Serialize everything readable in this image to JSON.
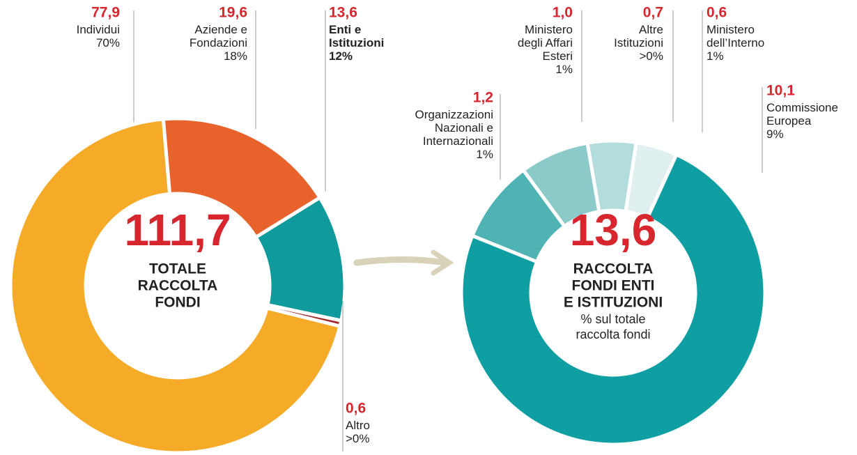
{
  "chart_data": [
    {
      "type": "donut",
      "center_value": {
        "value": 111.7,
        "label": "111,7"
      },
      "center_lines": [
        "TOTALE",
        "RACCOLTA",
        "FONDI"
      ],
      "labels": [
        [
          "Individui"
        ],
        [
          "Aziende e",
          "Fondazioni"
        ],
        [
          "Enti e",
          "Istituzioni"
        ],
        [
          "Altro"
        ]
      ],
      "values": [
        77.9,
        19.6,
        13.6,
        0.6
      ],
      "value_labels": [
        "77,9",
        "19,6",
        "13,6",
        "0,6"
      ],
      "share_labels": [
        "70%",
        "18%",
        "12%",
        ">0%"
      ],
      "colors": [
        "#f6ab28",
        "#e8622c",
        "#0f9a9c",
        "#a3262a"
      ],
      "highlight_index": 2
    },
    {
      "type": "donut",
      "center_value": {
        "value": 13.6,
        "label": "13,6"
      },
      "center_lines": [
        "RACCOLTA",
        "FONDI ENTI",
        "E ISTITUZIONI"
      ],
      "center_note": [
        "% sul totale",
        "raccolta fondi"
      ],
      "labels": [
        [
          "Organizzazioni",
          "Nazionali e",
          "Internazionali"
        ],
        [
          "Ministero",
          "degli Affari",
          "Esteri"
        ],
        [
          "Altre",
          "Istituzioni"
        ],
        [
          "Ministero",
          "dell’Interno"
        ],
        [
          "Commissione",
          "Europea"
        ]
      ],
      "values": [
        1.2,
        1.0,
        0.7,
        0.6,
        10.1
      ],
      "value_labels": [
        "1,2",
        "1,0",
        "0,7",
        "0,6",
        "10,1"
      ],
      "share_labels": [
        "1%",
        "1%",
        ">0%",
        "1%",
        "9%"
      ],
      "colors": [
        "#4fb3b3",
        "#8ccaca",
        "#b3dcdc",
        "#e0f0f0",
        "#0f9fa3"
      ]
    }
  ]
}
